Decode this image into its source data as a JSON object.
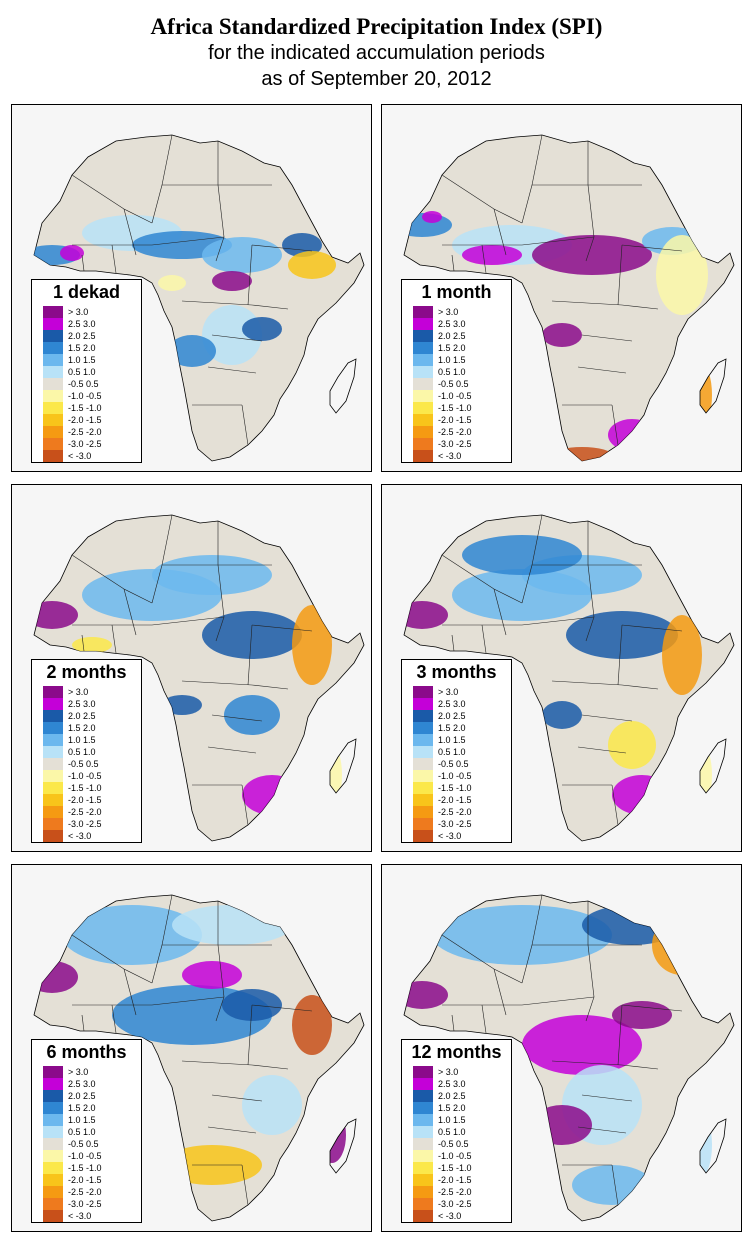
{
  "title": "Africa Standardized Precipitation Index (SPI)",
  "subtitle_line1": "for the indicated accumulation periods",
  "subtitle_line2": "as of September 20, 2012",
  "panels": [
    {
      "label": "1 dekad"
    },
    {
      "label": "1 month"
    },
    {
      "label": "2 months"
    },
    {
      "label": "3 months"
    },
    {
      "label": "6 months"
    },
    {
      "label": "12 months"
    }
  ],
  "legend": [
    {
      "label": "> 3.0",
      "color": "#8b0a8b"
    },
    {
      "label": "2.5  3.0",
      "color": "#c400d8"
    },
    {
      "label": "2.0  2.5",
      "color": "#1a5aa8"
    },
    {
      "label": "1.5  2.0",
      "color": "#2f86d2"
    },
    {
      "label": "1.0  1.5",
      "color": "#6cb8ee"
    },
    {
      "label": "0.5  1.0",
      "color": "#b8e2f7"
    },
    {
      "label": "-0.5  0.5",
      "color": "#e4e0d6"
    },
    {
      "label": "-1.0  -0.5",
      "color": "#fbf7a8"
    },
    {
      "label": "-1.5  -1.0",
      "color": "#fbe84a"
    },
    {
      "label": "-2.0  -1.5",
      "color": "#f8c41a"
    },
    {
      "label": "-2.5  -2.0",
      "color": "#f59a12"
    },
    {
      "label": "-3.0  -2.5",
      "color": "#ee7a1e"
    },
    {
      "label": "< -3.0",
      "color": "#c8501a"
    }
  ]
}
